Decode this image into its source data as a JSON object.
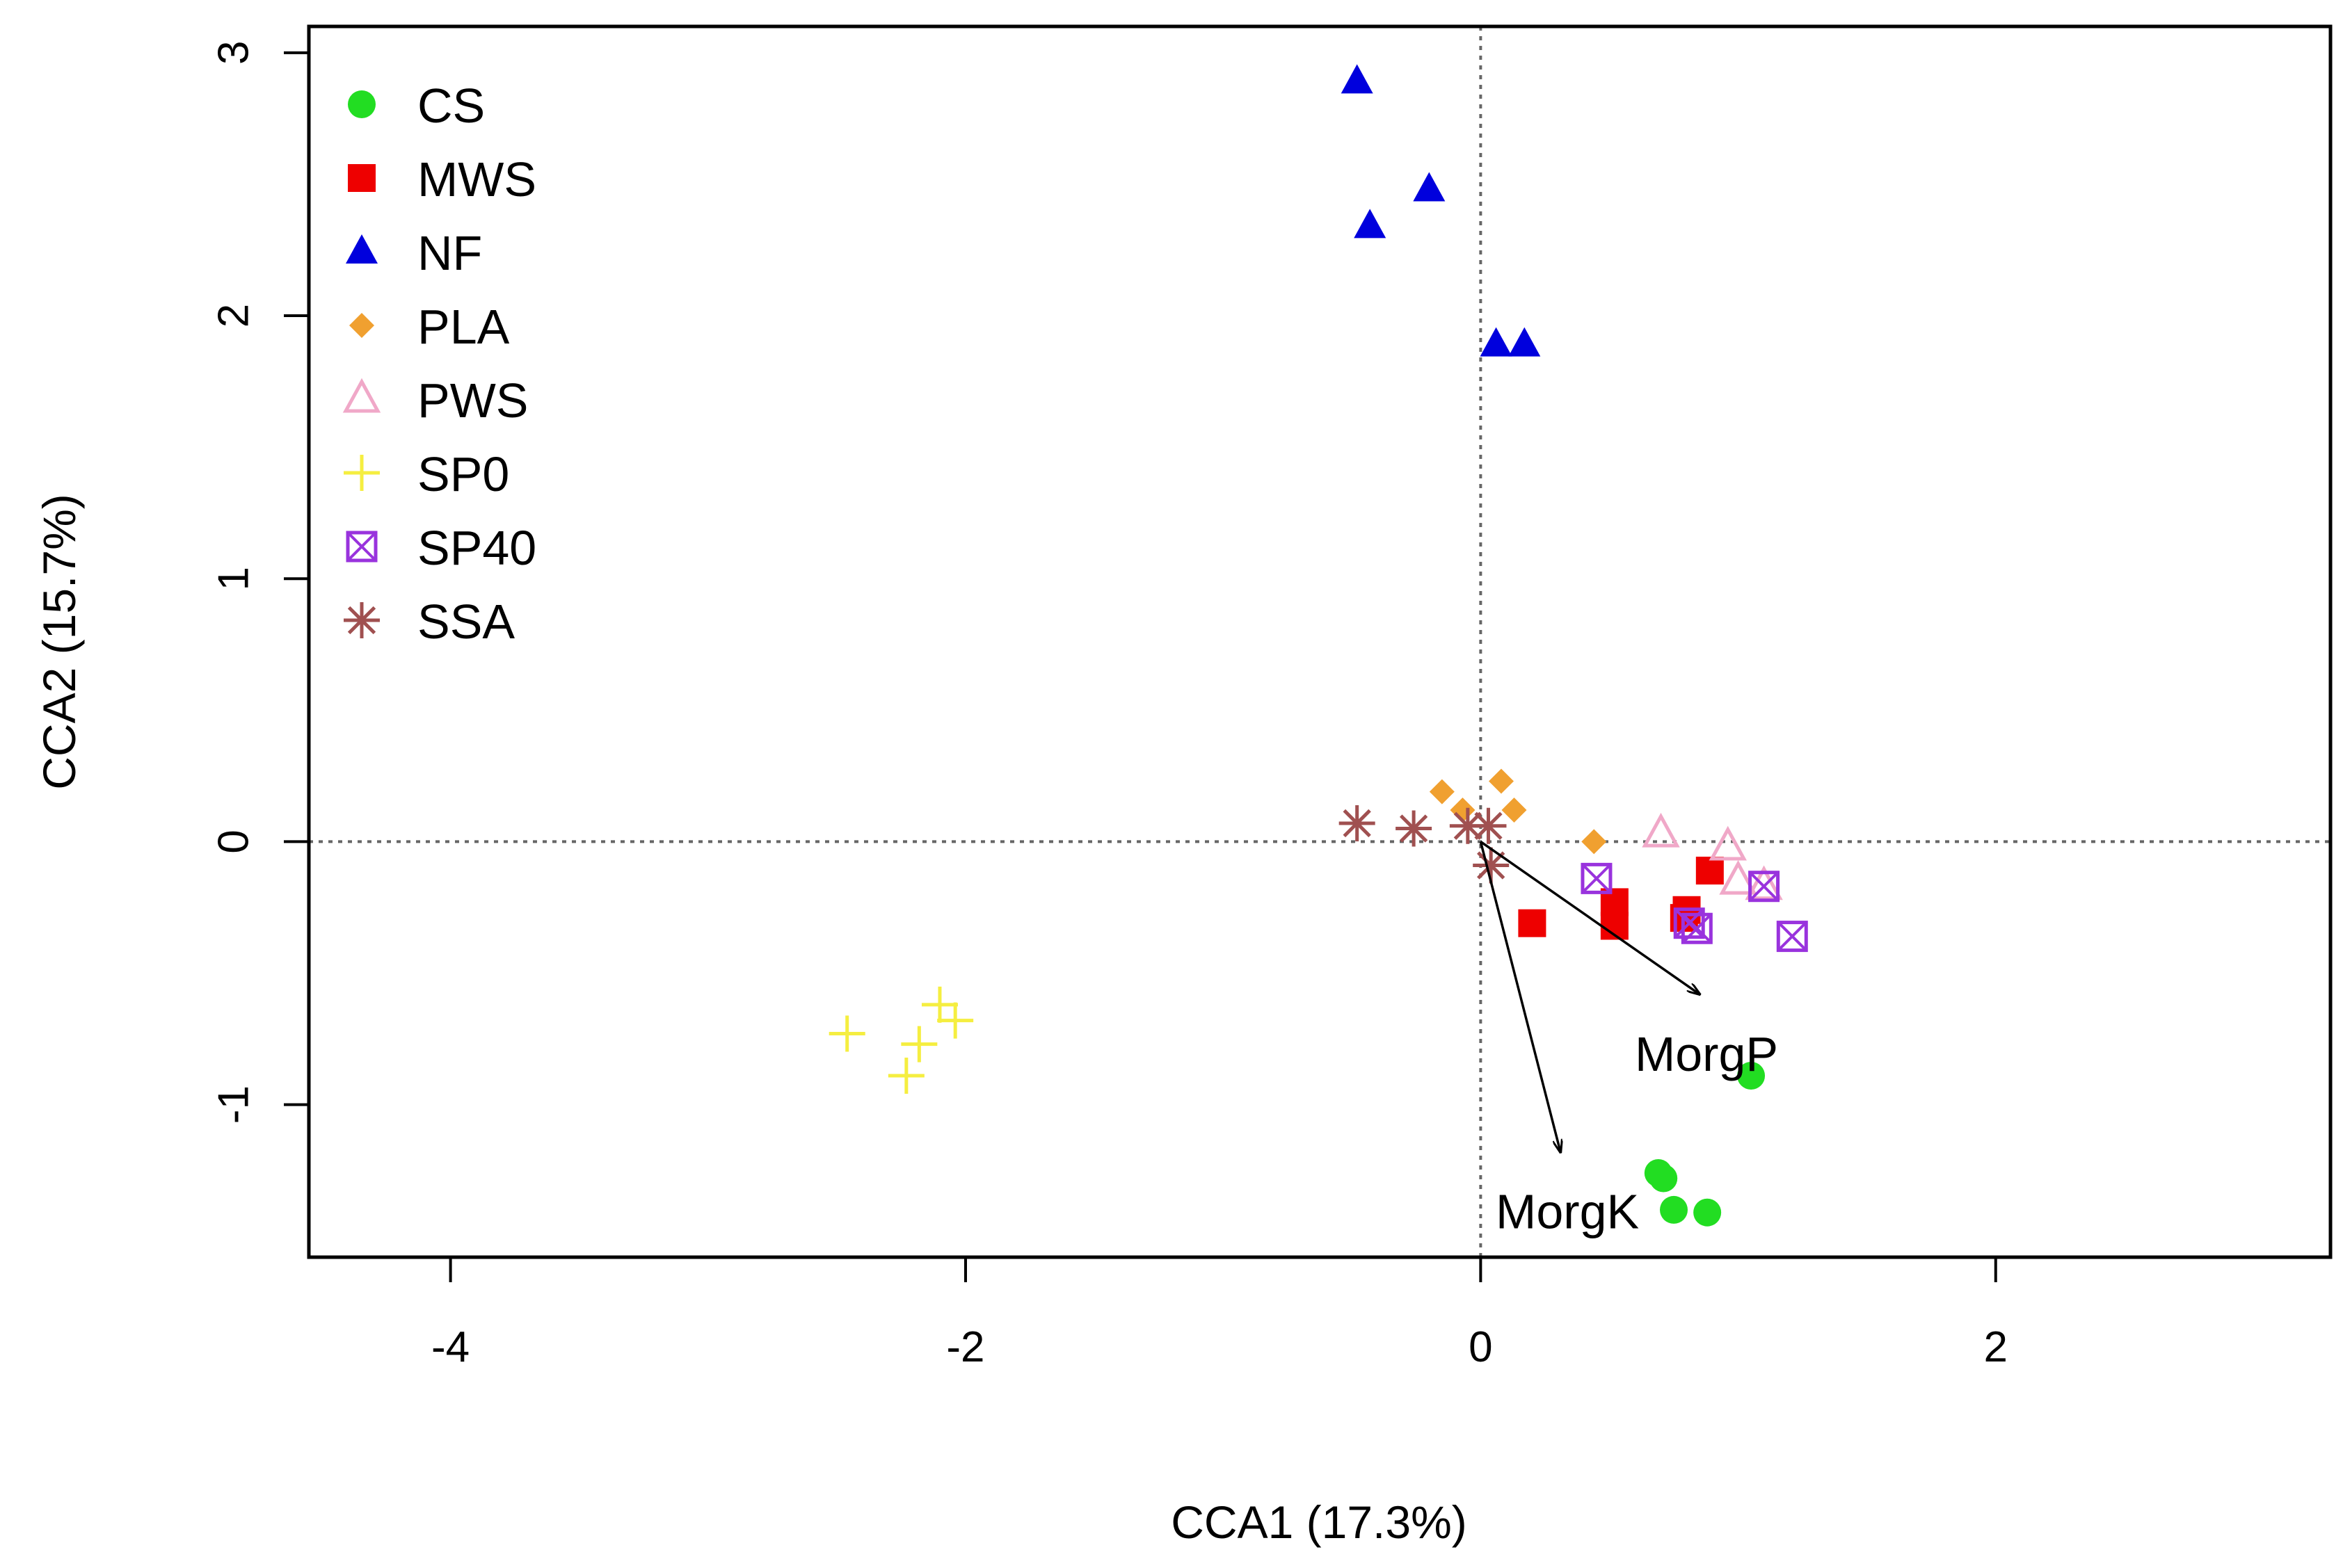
{
  "chart_data": {
    "type": "scatter",
    "title": "",
    "xlabel": "CCA1 (17.3%)",
    "ylabel": "CCA2 (15.7%)",
    "xlim": [
      -4.55,
      3.3
    ],
    "ylim": [
      -1.58,
      3.1
    ],
    "x_ticks": [
      -4,
      -2,
      0,
      2
    ],
    "y_ticks": [
      -1,
      0,
      1,
      2,
      3
    ],
    "x_tick_labels": [
      "-4",
      "-2",
      "0",
      "2"
    ],
    "y_tick_labels": [
      "-1",
      "0",
      "1",
      "2",
      "3"
    ],
    "reference_lines": {
      "x": 0,
      "y": 0,
      "style": "dotted"
    },
    "legend_position": "top-left",
    "series": [
      {
        "name": "CS",
        "marker": "circle",
        "color": "#22dd22",
        "points": [
          [
            1.05,
            -0.89
          ],
          [
            0.69,
            -1.26
          ],
          [
            0.75,
            -1.4
          ],
          [
            0.88,
            -1.41
          ],
          [
            0.71,
            -1.28
          ]
        ]
      },
      {
        "name": "MWS",
        "marker": "square",
        "color": "#ee0000",
        "points": [
          [
            0.89,
            -0.11
          ],
          [
            0.2,
            -0.31
          ],
          [
            0.52,
            -0.32
          ],
          [
            0.52,
            -0.23
          ],
          [
            0.79,
            -0.29
          ],
          [
            0.8,
            -0.26
          ]
        ]
      },
      {
        "name": "NF",
        "marker": "triangle",
        "color": "#0000dd",
        "points": [
          [
            -0.48,
            2.89
          ],
          [
            -0.2,
            2.48
          ],
          [
            -0.43,
            2.34
          ],
          [
            0.06,
            1.89
          ],
          [
            0.17,
            1.89
          ]
        ]
      },
      {
        "name": "PLA",
        "marker": "diamond",
        "color": "#f0a030",
        "points": [
          [
            -0.15,
            0.19
          ],
          [
            -0.07,
            0.12
          ],
          [
            0.08,
            0.23
          ],
          [
            0.13,
            0.12
          ],
          [
            0.44,
            0.0
          ]
        ]
      },
      {
        "name": "PWS",
        "marker": "triangle-open",
        "color": "#f0a8c8",
        "points": [
          [
            0.7,
            0.03
          ],
          [
            0.96,
            -0.02
          ],
          [
            1.0,
            -0.15
          ],
          [
            1.1,
            -0.17
          ]
        ]
      },
      {
        "name": "SP0",
        "marker": "plus",
        "color": "#f5ee40",
        "points": [
          [
            -2.46,
            -0.73
          ],
          [
            -2.1,
            -0.62
          ],
          [
            -2.04,
            -0.68
          ],
          [
            -2.18,
            -0.77
          ],
          [
            -2.23,
            -0.89
          ]
        ]
      },
      {
        "name": "SP40",
        "marker": "square-cross",
        "color": "#9933dd",
        "points": [
          [
            0.45,
            -0.14
          ],
          [
            0.81,
            -0.31
          ],
          [
            0.84,
            -0.33
          ],
          [
            1.1,
            -0.17
          ],
          [
            1.21,
            -0.36
          ]
        ]
      },
      {
        "name": "SSA",
        "marker": "asterisk",
        "color": "#a05050",
        "points": [
          [
            -0.48,
            0.07
          ],
          [
            -0.26,
            0.05
          ],
          [
            -0.05,
            0.06
          ],
          [
            0.03,
            0.06
          ],
          [
            0.04,
            -0.09
          ]
        ]
      }
    ],
    "vectors": [
      {
        "label": "MorgP",
        "x": 0.85,
        "y": -0.58
      },
      {
        "label": "MorgK",
        "x": 0.31,
        "y": -1.18
      }
    ]
  }
}
